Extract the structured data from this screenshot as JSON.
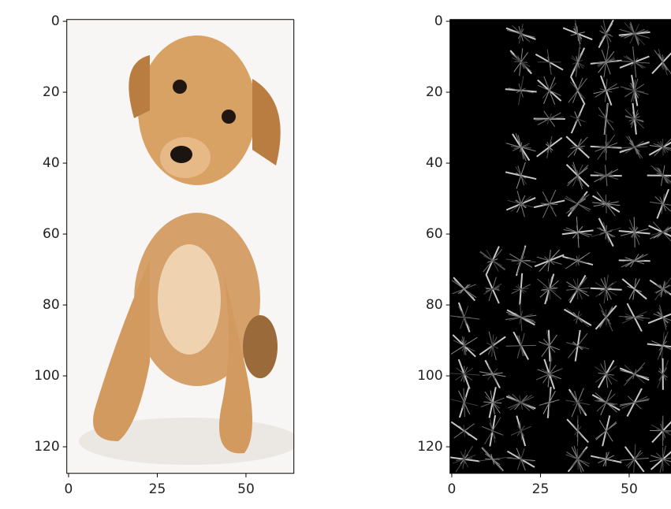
{
  "chart_data": [
    {
      "type": "image",
      "xlim": [
        -0.5,
        63.5
      ],
      "ylim": [
        127.5,
        -0.5
      ],
      "xticks": [
        0,
        25,
        50
      ],
      "yticks": [
        0,
        20,
        40,
        60,
        80,
        100,
        120
      ]
    },
    {
      "type": "image",
      "xlim": [
        -0.5,
        63.5
      ],
      "ylim": [
        127.5,
        -0.5
      ],
      "xticks": [
        0,
        25,
        50
      ],
      "yticks": [
        0,
        20,
        40,
        60,
        80,
        100,
        120
      ]
    }
  ]
}
